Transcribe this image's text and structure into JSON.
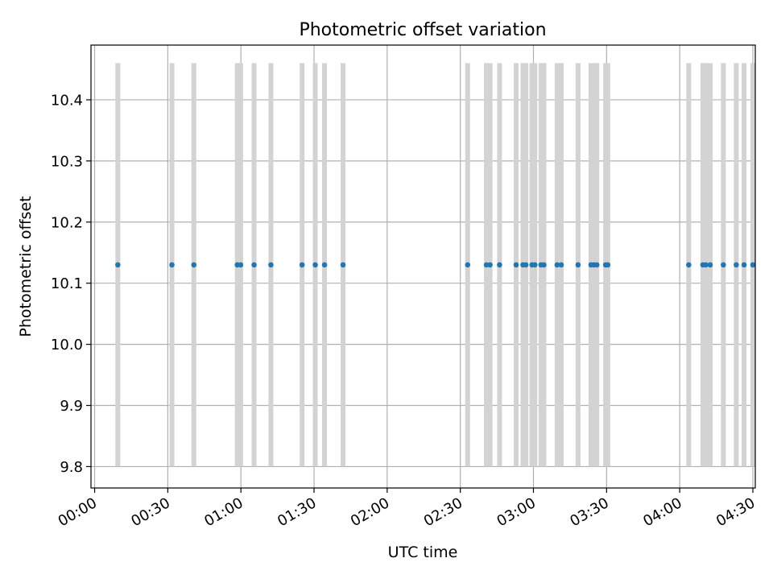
{
  "chart_data": {
    "type": "scatter",
    "title": "Photometric offset variation",
    "xlabel": "UTC time",
    "ylabel": "Photometric offset",
    "x_unit": "minutes UTC",
    "xlim": [
      -1.5,
      271
    ],
    "ylim": [
      9.765,
      10.4895
    ],
    "grid": true,
    "xticks": [
      {
        "value": 0,
        "label": "00:00"
      },
      {
        "value": 30,
        "label": "00:30"
      },
      {
        "value": 60,
        "label": "01:00"
      },
      {
        "value": 90,
        "label": "01:30"
      },
      {
        "value": 120,
        "label": "02:00"
      },
      {
        "value": 150,
        "label": "02:30"
      },
      {
        "value": 180,
        "label": "03:00"
      },
      {
        "value": 210,
        "label": "03:30"
      },
      {
        "value": 240,
        "label": "04:00"
      },
      {
        "value": 270,
        "label": "04:30"
      }
    ],
    "yticks": [
      {
        "value": 9.8,
        "label": "9.8"
      },
      {
        "value": 9.9,
        "label": "9.9"
      },
      {
        "value": 10.0,
        "label": "10.0"
      },
      {
        "value": 10.1,
        "label": "10.1"
      },
      {
        "value": 10.2,
        "label": "10.2"
      },
      {
        "value": 10.3,
        "label": "10.3"
      },
      {
        "value": 10.4,
        "label": "10.4"
      }
    ],
    "series": [
      {
        "x": [
          9.5,
          31.7,
          40.7,
          58.5,
          59.9,
          65.4,
          72.3,
          85.1,
          90.5,
          94.3,
          101.9,
          153,
          160.7,
          162.2,
          166.1,
          172.9,
          175.7,
          176.9,
          179.4,
          180.6,
          183.1,
          184.3,
          189.7,
          191.4,
          198.3,
          203.6,
          204.8,
          206,
          209.6,
          210.5,
          243.7,
          249.5,
          250.7,
          252.5,
          257.9,
          263.2,
          266.4,
          270
        ],
        "y": [
          10.13,
          10.13,
          10.13,
          10.13,
          10.13,
          10.13,
          10.13,
          10.13,
          10.13,
          10.13,
          10.13,
          10.13,
          10.13,
          10.13,
          10.13,
          10.13,
          10.13,
          10.13,
          10.13,
          10.13,
          10.13,
          10.13,
          10.13,
          10.13,
          10.13,
          10.13,
          10.13,
          10.13,
          10.13,
          10.13,
          10.13,
          10.13,
          10.13,
          10.13,
          10.13,
          10.13,
          10.13,
          10.13
        ],
        "y_err": 0.33,
        "color": "#1f77b4",
        "errorbar_color": "#d3d3d3"
      }
    ]
  }
}
